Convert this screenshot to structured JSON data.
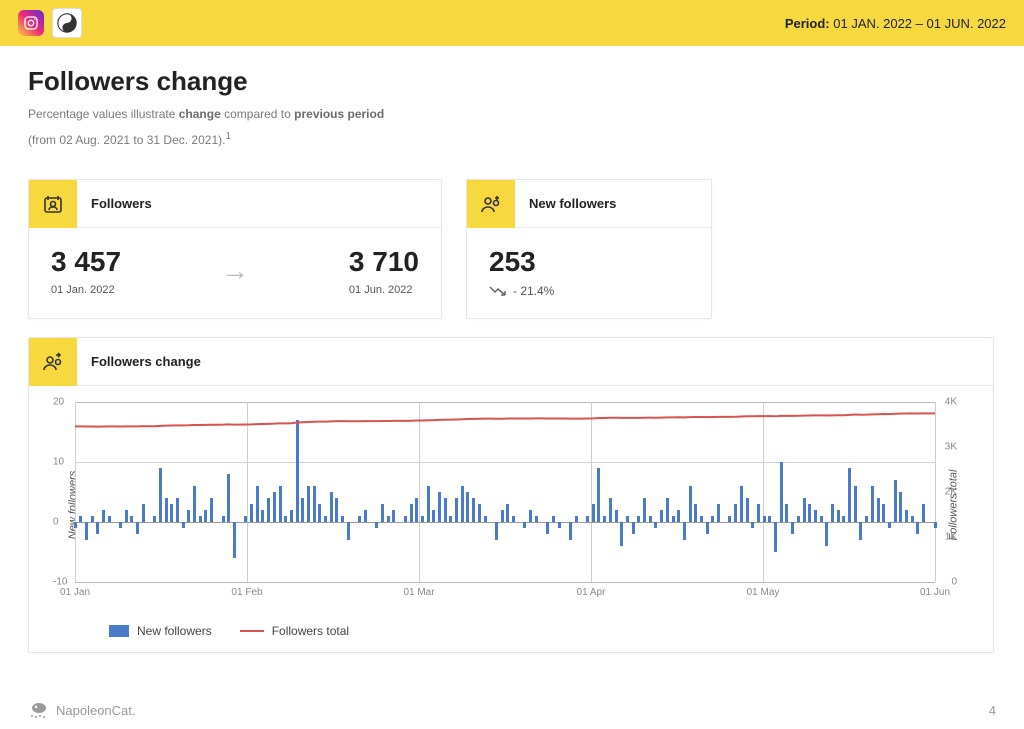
{
  "header": {
    "period_label": "Period:",
    "period_value": "01 JAN. 2022 – 01 JUN. 2022"
  },
  "page": {
    "title": "Followers change",
    "subtitle_prefix": "Percentage values illustrate ",
    "subtitle_bold1": "change",
    "subtitle_mid": " compared to ",
    "subtitle_bold2": "previous period",
    "subtitle_suffix": "(from 02 Aug. 2021 to 31 Dec. 2021).",
    "footnote_marker": "1"
  },
  "cards": {
    "followers": {
      "title": "Followers",
      "start_value": "3 457",
      "start_date": "01 Jan. 2022",
      "end_value": "3 710",
      "end_date": "01 Jun. 2022"
    },
    "new_followers": {
      "title": "New followers",
      "value": "253",
      "trend_text": "- 21.4%",
      "trend_direction": "down"
    },
    "chart": {
      "title": "Followers change"
    }
  },
  "chart": {
    "type": "bar+line",
    "left_axis_label": "New followers",
    "right_axis_label": "Followers total",
    "legend": {
      "bars": "New followers",
      "line": "Followers total"
    },
    "colors": {
      "bar": "#4a7bc8",
      "line": "#d9534f",
      "grid": "#d0d0d0",
      "axis_text": "#888888",
      "background": "#ffffff",
      "accent": "#f7d93f"
    },
    "left_ylim": [
      -10,
      20
    ],
    "left_ticks": [
      -10,
      0,
      10,
      20
    ],
    "right_ylim": [
      0,
      4000
    ],
    "right_ticks": [
      {
        "v": 0,
        "l": "0"
      },
      {
        "v": 1000,
        "l": "1K"
      },
      {
        "v": 2000,
        "l": "2K"
      },
      {
        "v": 3000,
        "l": "3K"
      },
      {
        "v": 4000,
        "l": "4K"
      }
    ],
    "x_ticks": [
      "01 Jan",
      "01 Feb",
      "01 Mar",
      "01 Apr",
      "01 May",
      "01 Jun"
    ],
    "bar_values": [
      -1,
      1,
      -3,
      1,
      -2,
      2,
      1,
      0,
      -1,
      2,
      1,
      -2,
      3,
      0,
      1,
      9,
      4,
      3,
      4,
      -1,
      2,
      6,
      1,
      2,
      4,
      0,
      1,
      8,
      -6,
      0,
      1,
      3,
      6,
      2,
      4,
      5,
      6,
      1,
      2,
      17,
      4,
      6,
      6,
      3,
      1,
      5,
      4,
      1,
      -3,
      0,
      1,
      2,
      0,
      -1,
      3,
      1,
      2,
      0,
      1,
      3,
      4,
      1,
      6,
      2,
      5,
      4,
      1,
      4,
      6,
      5,
      4,
      3,
      1,
      0,
      -3,
      2,
      3,
      1,
      0,
      -1,
      2,
      1,
      0,
      -2,
      1,
      -1,
      0,
      -3,
      1,
      0,
      1,
      3,
      9,
      1,
      4,
      2,
      -4,
      1,
      -2,
      1,
      4,
      1,
      -1,
      2,
      4,
      1,
      2,
      -3,
      6,
      3,
      1,
      -2,
      1,
      3,
      0,
      1,
      3,
      6,
      4,
      -1,
      3,
      1,
      1,
      -5,
      10,
      3,
      -2,
      1,
      4,
      3,
      2,
      1,
      -4,
      3,
      2,
      1,
      9,
      6,
      -3,
      1,
      6,
      4,
      3,
      -1,
      7,
      5,
      2,
      1,
      -2,
      3,
      0,
      -1
    ],
    "line_start": 3457,
    "line_end": 3710
  },
  "footer": {
    "brand": "NapoleonCat.",
    "page_number": "4"
  }
}
